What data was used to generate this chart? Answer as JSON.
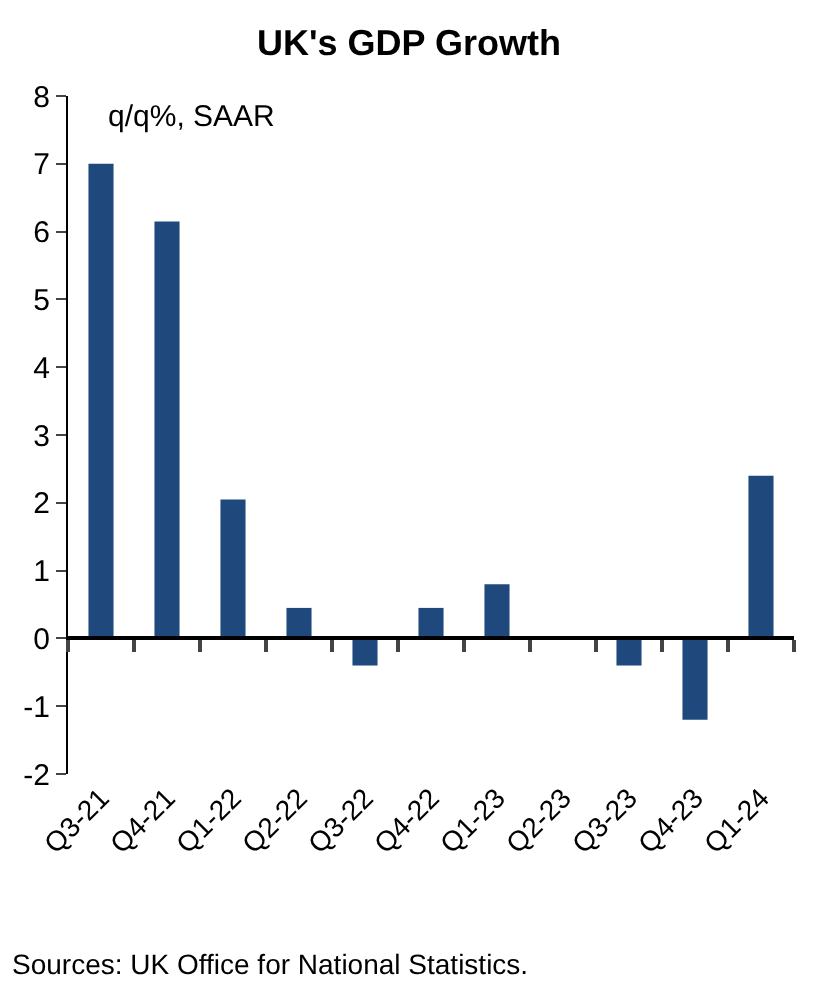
{
  "chart_data": {
    "type": "bar",
    "title": "UK's GDP Growth",
    "categories": [
      "Q3-21",
      "Q4-21",
      "Q1-22",
      "Q2-22",
      "Q3-22",
      "Q4-22",
      "Q1-23",
      "Q2-23",
      "Q3-23",
      "Q4-23",
      "Q1-24"
    ],
    "values": [
      7.0,
      6.15,
      2.05,
      0.45,
      -0.4,
      0.45,
      0.8,
      0.0,
      -0.4,
      -1.2,
      2.4
    ],
    "color": "#1f497d",
    "ylim": [
      -2,
      8
    ],
    "yticks": [
      -2,
      -1,
      0,
      1,
      2,
      3,
      4,
      5,
      6,
      7,
      8
    ],
    "annotations": [
      "q/q%, SAAR",
      "Sources: UK Office for National Statistics."
    ]
  }
}
